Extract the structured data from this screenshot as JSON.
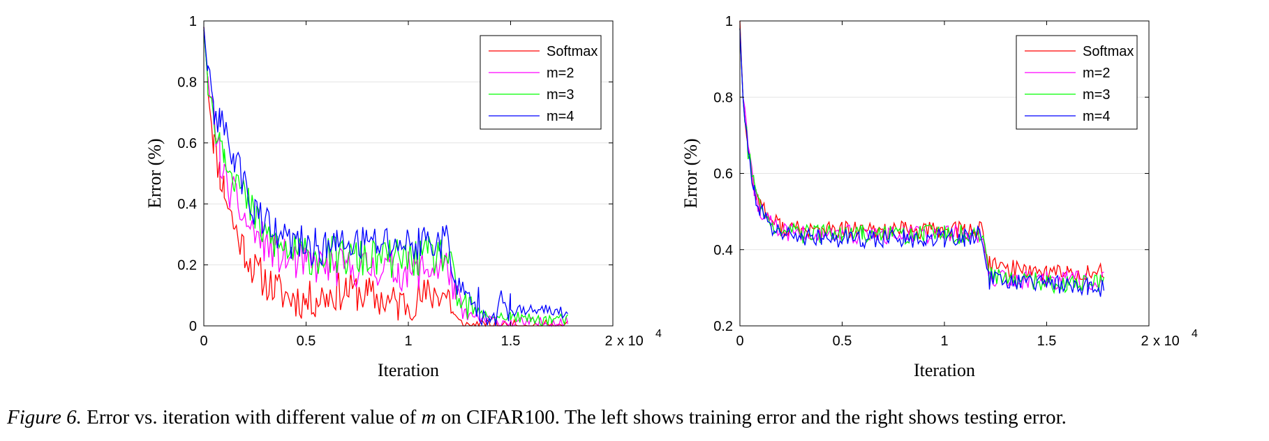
{
  "chart_data": [
    {
      "type": "line",
      "xlabel": "Iteration",
      "ylabel": "Error (%)",
      "xlim": [
        0,
        20000
      ],
      "ylim": [
        0,
        1
      ],
      "xticks": [
        0,
        5000,
        10000,
        15000,
        20000
      ],
      "xtick_labels": [
        "0",
        "0.5",
        "1",
        "1.5",
        "2"
      ],
      "yticks": [
        0,
        0.2,
        0.4,
        0.6,
        0.8,
        1
      ],
      "ytick_labels": [
        "0",
        "0.2",
        "0.4",
        "0.6",
        "0.8",
        "1"
      ],
      "x_multiplier": "x 10",
      "x_multiplier_exp": "4",
      "grid": "horizontal",
      "legend_position": "top-right",
      "series": [
        {
          "name": "Softmax",
          "color": "#ff0000",
          "x": [
            0,
            200,
            500,
            800,
            1000,
            1500,
            2000,
            2500,
            3000,
            3500,
            4000,
            4500,
            5000,
            5500,
            6000,
            6500,
            7000,
            7500,
            8000,
            8500,
            9000,
            9500,
            10000,
            10500,
            11000,
            11500,
            12000,
            12200,
            12500,
            13000,
            13500,
            14000,
            15000,
            16000,
            17000,
            17800
          ],
          "y": [
            0.98,
            0.8,
            0.6,
            0.5,
            0.45,
            0.32,
            0.25,
            0.18,
            0.15,
            0.12,
            0.1,
            0.09,
            0.08,
            0.09,
            0.1,
            0.11,
            0.12,
            0.11,
            0.1,
            0.09,
            0.08,
            0.07,
            0.08,
            0.09,
            0.1,
            0.11,
            0.1,
            0.04,
            0.01,
            0.0,
            0.0,
            0.0,
            0.0,
            0.0,
            0.0,
            0.0
          ]
        },
        {
          "name": "m=2",
          "color": "#ff00ff",
          "x": [
            0,
            200,
            500,
            800,
            1000,
            1500,
            2000,
            2500,
            3000,
            3500,
            4000,
            4500,
            5000,
            5500,
            6000,
            6500,
            7000,
            7500,
            8000,
            8500,
            9000,
            9500,
            10000,
            10500,
            11000,
            11500,
            12000,
            12300,
            12800,
            13500,
            14000,
            15000,
            16000,
            17000,
            17800
          ],
          "y": [
            0.97,
            0.8,
            0.68,
            0.55,
            0.48,
            0.42,
            0.35,
            0.3,
            0.27,
            0.24,
            0.22,
            0.21,
            0.2,
            0.2,
            0.2,
            0.19,
            0.19,
            0.19,
            0.19,
            0.19,
            0.19,
            0.18,
            0.18,
            0.18,
            0.19,
            0.19,
            0.19,
            0.08,
            0.04,
            0.02,
            0.02,
            0.01,
            0.01,
            0.01,
            0.01
          ]
        },
        {
          "name": "m=3",
          "color": "#00ff00",
          "x": [
            0,
            200,
            500,
            800,
            1000,
            1500,
            2000,
            2500,
            3000,
            3500,
            4000,
            4500,
            5000,
            5500,
            6000,
            6500,
            7000,
            7500,
            8000,
            8500,
            9000,
            9500,
            10000,
            10500,
            11000,
            11500,
            12000,
            12300,
            12800,
            13500,
            14000,
            15000,
            16000,
            17000,
            17800
          ],
          "y": [
            0.97,
            0.8,
            0.68,
            0.62,
            0.58,
            0.5,
            0.42,
            0.35,
            0.3,
            0.27,
            0.25,
            0.24,
            0.23,
            0.23,
            0.23,
            0.23,
            0.22,
            0.22,
            0.22,
            0.22,
            0.22,
            0.22,
            0.22,
            0.22,
            0.23,
            0.23,
            0.23,
            0.1,
            0.06,
            0.04,
            0.03,
            0.03,
            0.02,
            0.02,
            0.02
          ]
        },
        {
          "name": "m=4",
          "color": "#0000ff",
          "x": [
            0,
            200,
            500,
            800,
            1000,
            1500,
            2000,
            2500,
            3000,
            3500,
            4000,
            4500,
            5000,
            5500,
            6000,
            6500,
            7000,
            7500,
            8000,
            8500,
            9000,
            9500,
            10000,
            10500,
            11000,
            11500,
            12000,
            12300,
            12800,
            13500,
            14000,
            15000,
            16000,
            17000,
            17800
          ],
          "y": [
            0.98,
            0.82,
            0.7,
            0.67,
            0.64,
            0.56,
            0.46,
            0.38,
            0.33,
            0.3,
            0.28,
            0.27,
            0.26,
            0.26,
            0.26,
            0.26,
            0.27,
            0.27,
            0.27,
            0.27,
            0.27,
            0.27,
            0.27,
            0.27,
            0.28,
            0.28,
            0.28,
            0.12,
            0.09,
            0.07,
            0.06,
            0.05,
            0.05,
            0.05,
            0.04
          ]
        }
      ]
    },
    {
      "type": "line",
      "xlabel": "Iteration",
      "ylabel": "Error (%)",
      "xlim": [
        0,
        20000
      ],
      "ylim": [
        0.2,
        1
      ],
      "xticks": [
        0,
        5000,
        10000,
        15000,
        20000
      ],
      "xtick_labels": [
        "0",
        "0.5",
        "1",
        "1.5",
        "2"
      ],
      "yticks": [
        0.2,
        0.4,
        0.6,
        0.8,
        1
      ],
      "ytick_labels": [
        "0.2",
        "0.4",
        "0.6",
        "0.8",
        "1"
      ],
      "x_multiplier": "x 10",
      "x_multiplier_exp": "4",
      "grid": "horizontal",
      "legend_position": "top-right",
      "series": [
        {
          "name": "Softmax",
          "color": "#ff0000",
          "x": [
            0,
            150,
            400,
            700,
            1000,
            1500,
            2000,
            3000,
            4000,
            5000,
            6000,
            7000,
            8000,
            9000,
            10000,
            11000,
            11800,
            12200,
            13000,
            14000,
            15000,
            16000,
            17000,
            17800
          ],
          "y": [
            1.0,
            0.8,
            0.67,
            0.56,
            0.52,
            0.48,
            0.46,
            0.45,
            0.45,
            0.45,
            0.45,
            0.45,
            0.45,
            0.45,
            0.45,
            0.45,
            0.45,
            0.36,
            0.35,
            0.35,
            0.34,
            0.34,
            0.34,
            0.34
          ]
        },
        {
          "name": "m=2",
          "color": "#ff00ff",
          "x": [
            0,
            150,
            400,
            700,
            1000,
            1500,
            2000,
            3000,
            4000,
            5000,
            6000,
            7000,
            8000,
            9000,
            10000,
            11000,
            11800,
            12200,
            13000,
            14000,
            15000,
            16000,
            17000,
            17800
          ],
          "y": [
            0.98,
            0.8,
            0.66,
            0.55,
            0.5,
            0.47,
            0.45,
            0.44,
            0.44,
            0.44,
            0.44,
            0.44,
            0.44,
            0.44,
            0.44,
            0.44,
            0.44,
            0.33,
            0.32,
            0.32,
            0.32,
            0.32,
            0.32,
            0.32
          ]
        },
        {
          "name": "m=3",
          "color": "#00ff00",
          "x": [
            0,
            150,
            400,
            700,
            1000,
            1500,
            2000,
            3000,
            4000,
            5000,
            6000,
            7000,
            8000,
            9000,
            10000,
            11000,
            11800,
            12200,
            13000,
            14000,
            15000,
            16000,
            17000,
            17800
          ],
          "y": [
            0.98,
            0.8,
            0.66,
            0.56,
            0.51,
            0.47,
            0.45,
            0.44,
            0.44,
            0.44,
            0.44,
            0.44,
            0.44,
            0.44,
            0.44,
            0.44,
            0.44,
            0.33,
            0.32,
            0.32,
            0.31,
            0.31,
            0.31,
            0.31
          ]
        },
        {
          "name": "m=4",
          "color": "#0000ff",
          "x": [
            0,
            150,
            400,
            700,
            1000,
            1500,
            2000,
            3000,
            4000,
            5000,
            6000,
            7000,
            8000,
            9000,
            10000,
            11000,
            11800,
            12200,
            13000,
            14000,
            15000,
            16000,
            17000,
            17800
          ],
          "y": [
            0.98,
            0.8,
            0.66,
            0.55,
            0.5,
            0.46,
            0.44,
            0.43,
            0.43,
            0.43,
            0.43,
            0.43,
            0.43,
            0.43,
            0.43,
            0.43,
            0.44,
            0.32,
            0.31,
            0.31,
            0.31,
            0.31,
            0.3,
            0.3
          ]
        }
      ]
    }
  ],
  "caption": {
    "figure_label": "Figure 6.",
    "text_before": "Error vs. iteration with different value of",
    "variable": "m",
    "text_after": "on CIFAR100. The left shows training error and the right shows testing error."
  }
}
